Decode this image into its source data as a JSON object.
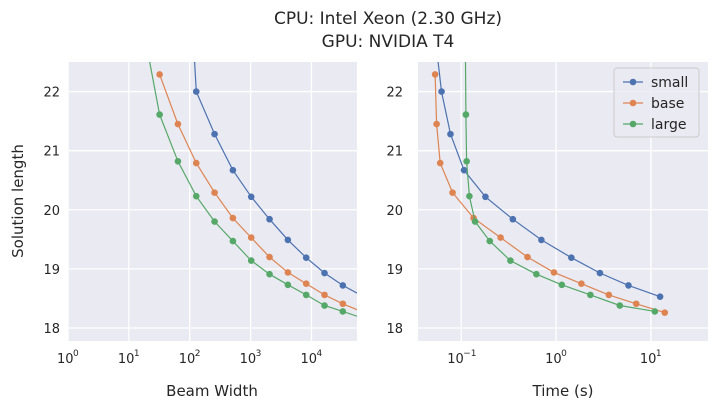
{
  "title_lines": [
    "CPU: Intel Xeon (2.30 GHz)",
    "GPU: NVIDIA T4"
  ],
  "colors": {
    "small": "#4c72b0",
    "base": "#dd8452",
    "large": "#55a868",
    "panel_bg": "#eaeaf2",
    "grid": "#ffffff"
  },
  "chart_data": [
    {
      "type": "line",
      "xlabel": "Beam Width",
      "ylabel": "Solution length",
      "xscale": "log",
      "xlim": [
        1,
        56000
      ],
      "ylim": [
        17.78,
        22.5
      ],
      "xticks": [
        {
          "base": "10",
          "exp": "0",
          "value": 1
        },
        {
          "base": "10",
          "exp": "1",
          "value": 10
        },
        {
          "base": "10",
          "exp": "2",
          "value": 100
        },
        {
          "base": "10",
          "exp": "3",
          "value": 1000
        },
        {
          "base": "10",
          "exp": "4",
          "value": 10000
        }
      ],
      "yticks": [
        "18",
        "19",
        "20",
        "21",
        "22"
      ],
      "grid": true,
      "series": [
        {
          "name": "small",
          "x": [
            128,
            256,
            512,
            1024,
            2048,
            4096,
            8192,
            16384,
            32768
          ],
          "y": [
            22.0,
            21.28,
            20.67,
            20.22,
            19.84,
            19.49,
            19.19,
            18.93,
            18.72
          ],
          "line_ends": [
            {
              "x": 120,
              "y": 22.5
            },
            {
              "x": 56000,
              "y": 18.59
            }
          ]
        },
        {
          "name": "base",
          "x": [
            32,
            64,
            128,
            256,
            512,
            1024,
            2048,
            4096,
            8192,
            16384,
            32768
          ],
          "y": [
            22.29,
            21.45,
            20.79,
            20.29,
            19.86,
            19.53,
            19.2,
            18.94,
            18.75,
            18.56,
            18.41
          ],
          "line_ends": [
            {
              "x": 56000,
              "y": 18.31
            }
          ]
        },
        {
          "name": "large",
          "x": [
            32,
            64,
            128,
            256,
            512,
            1024,
            2048,
            4096,
            8192,
            16384,
            32768
          ],
          "y": [
            21.61,
            20.82,
            20.23,
            19.8,
            19.47,
            19.14,
            18.91,
            18.73,
            18.56,
            18.38,
            18.28
          ],
          "line_ends": [
            {
              "x": 22,
              "y": 22.5
            },
            {
              "x": 56000,
              "y": 18.2
            }
          ]
        }
      ]
    },
    {
      "type": "line",
      "xlabel": "Time (s)",
      "ylabel": "",
      "xscale": "log",
      "xlim": [
        0.035,
        40
      ],
      "ylim": [
        17.78,
        22.5
      ],
      "xticks": [
        {
          "base": "10",
          "exp": "−1",
          "value": 0.1
        },
        {
          "base": "10",
          "exp": "0",
          "value": 1
        },
        {
          "base": "10",
          "exp": "1",
          "value": 10
        }
      ],
      "yticks": [
        "18",
        "19",
        "20",
        "21",
        "22"
      ],
      "grid": true,
      "legend": {
        "position": "top-right",
        "entries": [
          "small",
          "base",
          "large"
        ]
      },
      "series": [
        {
          "name": "small",
          "x": [
            0.062,
            0.077,
            0.107,
            0.18,
            0.35,
            0.7,
            1.45,
            2.9,
            5.8,
            12.5
          ],
          "y": [
            22.0,
            21.28,
            20.67,
            20.22,
            19.84,
            19.49,
            19.19,
            18.93,
            18.72,
            18.53
          ],
          "line_ends": [
            {
              "x": 0.057,
              "y": 22.5
            }
          ]
        },
        {
          "name": "base",
          "x": [
            0.053,
            0.055,
            0.06,
            0.081,
            0.135,
            0.26,
            0.5,
            0.95,
            1.85,
            3.6,
            7.0,
            14.0
          ],
          "y": [
            22.29,
            21.45,
            20.79,
            20.29,
            19.86,
            19.53,
            19.2,
            18.94,
            18.75,
            18.56,
            18.41,
            18.26
          ]
        },
        {
          "name": "large",
          "x": [
            0.112,
            0.114,
            0.122,
            0.14,
            0.2,
            0.33,
            0.62,
            1.15,
            2.3,
            4.7,
            11.0
          ],
          "y": [
            21.61,
            20.82,
            20.23,
            19.8,
            19.47,
            19.14,
            18.91,
            18.73,
            18.56,
            18.38,
            18.28
          ],
          "line_ends": [
            {
              "x": 0.111,
              "y": 22.5
            }
          ]
        }
      ]
    }
  ]
}
